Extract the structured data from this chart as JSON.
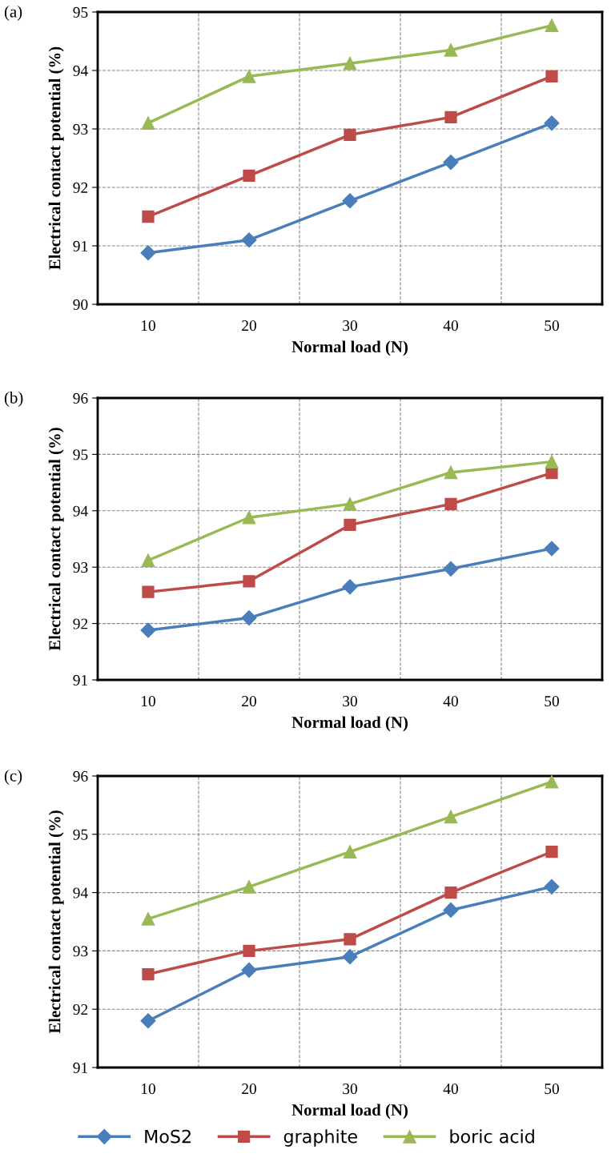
{
  "chart_data": [
    {
      "type": "line",
      "annotations": [
        "(a)"
      ],
      "xlabel": "Normal load (N)",
      "ylabel": "Electrical contact potential (%)",
      "categories": [
        "10",
        "20",
        "30",
        "40",
        "50"
      ],
      "ylim": [
        90,
        95
      ],
      "yticks": [
        90,
        91,
        92,
        93,
        94,
        95
      ],
      "grid": true,
      "line_style": "solid",
      "legend": false,
      "series": [
        {
          "color": "#4a7ebb",
          "marker": "diamond",
          "values": [
            90.88,
            91.1,
            91.77,
            92.43,
            93.1
          ]
        },
        {
          "color": "#be4b48",
          "marker": "square",
          "values": [
            91.5,
            92.2,
            92.9,
            93.2,
            93.9
          ]
        },
        {
          "color": "#98b954",
          "marker": "triangle",
          "values": [
            93.1,
            93.9,
            94.12,
            94.35,
            94.77
          ]
        }
      ]
    },
    {
      "type": "line",
      "annotations": [
        "(b)"
      ],
      "xlabel": "Normal load (N)",
      "ylabel": "Electrical contact potential (%)",
      "categories": [
        "10",
        "20",
        "30",
        "40",
        "50"
      ],
      "ylim": [
        91,
        96
      ],
      "yticks": [
        91,
        92,
        93,
        94,
        95,
        96
      ],
      "grid": true,
      "line_style": "solid",
      "legend": false,
      "series": [
        {
          "color": "#4a7ebb",
          "marker": "diamond",
          "values": [
            91.88,
            92.1,
            92.65,
            92.97,
            93.33
          ]
        },
        {
          "color": "#be4b48",
          "marker": "square",
          "values": [
            92.56,
            92.75,
            93.75,
            94.12,
            94.67
          ]
        },
        {
          "color": "#98b954",
          "marker": "triangle",
          "values": [
            93.12,
            93.88,
            94.12,
            94.68,
            94.87
          ]
        }
      ]
    },
    {
      "type": "line",
      "annotations": [
        "(c)"
      ],
      "xlabel": "Normal load (N)",
      "ylabel": "Electrical contact potential (%)",
      "categories": [
        "10",
        "20",
        "30",
        "40",
        "50"
      ],
      "ylim": [
        91,
        96
      ],
      "yticks": [
        91,
        92,
        93,
        94,
        95,
        96
      ],
      "grid": true,
      "line_style": "solid",
      "legend": "bottom",
      "series": [
        {
          "name": "MoS2",
          "color": "#4a7ebb",
          "marker": "diamond",
          "values": [
            91.8,
            92.67,
            92.9,
            93.7,
            94.1
          ]
        },
        {
          "name": "graphite",
          "color": "#be4b48",
          "marker": "square",
          "values": [
            92.6,
            93.0,
            93.2,
            94.0,
            94.7
          ]
        },
        {
          "name": "boric acid",
          "color": "#98b954",
          "marker": "triangle",
          "values": [
            93.55,
            94.1,
            94.7,
            95.3,
            95.9
          ]
        }
      ]
    }
  ]
}
